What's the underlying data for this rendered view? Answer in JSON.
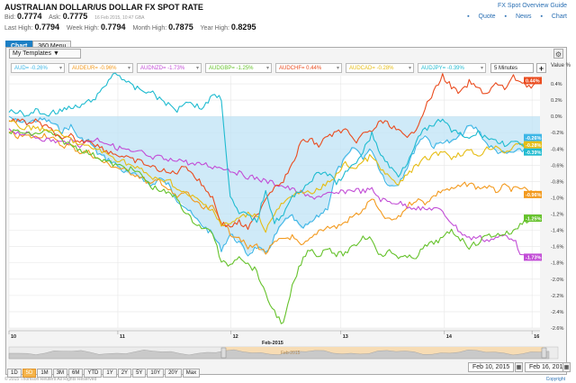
{
  "header": {
    "title": "AUSTRALIAN DOLLAR/US DOLLAR FX SPOT RATE",
    "bid_label": "Bid:",
    "bid": "0.7774",
    "ask_label": "Ask:",
    "ask": "0.7775",
    "timestamp": "16 Feb 2015, 10:47 GBA",
    "last_high_label": "Last High:",
    "last_high": "0.7794",
    "week_high_label": "Week High:",
    "week_high": "0.7794",
    "month_high_label": "Month High:",
    "month_high": "0.7875",
    "year_high_label": "Year High:",
    "year_high": "0.8295"
  },
  "links": {
    "guide": "FX Spot Overview Guide",
    "quote": "Quote",
    "news": "News",
    "chart": "Chart"
  },
  "tabs": [
    {
      "label": "Chart",
      "active": true
    },
    {
      "label": "360 Menu",
      "active": false
    }
  ],
  "toolbar": {
    "templates": "My Templates ▼",
    "gear": "⚙",
    "interval": "5 Minutes",
    "plus": "+",
    "axis_title": "Value %"
  },
  "range_buttons": [
    "1D",
    "5D",
    "1M",
    "3M",
    "6M",
    "YTD",
    "1Y",
    "2Y",
    "5Y",
    "10Y",
    "20Y",
    "Max"
  ],
  "active_range": "5D",
  "dates": {
    "from": "Feb 10, 2015",
    "to": "Feb 16, 2015"
  },
  "footer": {
    "copy": "© 2015 Thomson Reuters All Rights Reserved",
    "copyright": "Copyright"
  },
  "chart_data": {
    "type": "line",
    "x_ticks": [
      "10",
      "11",
      "12",
      "13",
      "14",
      "16"
    ],
    "x_month_label": "Feb-2015",
    "navigator_label": "Feb-2015",
    "y_ticks": [
      "0.4%",
      "0.2%",
      "0.0%",
      "-0.2%",
      "-0.4%",
      "-0.6%",
      "-0.8%",
      "-1.0%",
      "-1.2%",
      "-1.4%",
      "-1.6%",
      "-1.8%",
      "-2.0%",
      "-2.2%",
      "-2.4%",
      "-2.6%"
    ],
    "ylim": [
      -2.6,
      0.5
    ],
    "area_series": "AUD",
    "series": [
      {
        "name": "AUD",
        "button": "AUD= -0.26%",
        "color": "#3db6e6",
        "end_label": "-0.26%",
        "values": [
          0.0,
          -0.07,
          -0.08,
          -0.05,
          -0.04,
          -0.09,
          -0.18,
          -0.12,
          -0.28,
          -0.3,
          -0.45,
          -0.52,
          -0.58,
          -0.68,
          -0.72,
          -0.74,
          -0.86,
          -0.76,
          -0.84,
          -1.02,
          -1.12,
          -1.25,
          -1.35,
          -1.45,
          -1.63,
          -1.45,
          -1.55,
          -1.7,
          -1.6,
          -1.7,
          -1.48,
          -1.3,
          -1.22,
          -1.38,
          -1.32,
          -1.22,
          -1.12,
          -0.68,
          -0.52,
          -0.38,
          -0.5,
          -0.4,
          -0.68,
          -0.86,
          -0.82,
          -0.62,
          -0.36,
          -0.22,
          -0.38,
          -0.3,
          -0.32,
          -0.24,
          -0.12,
          -0.16,
          -0.34,
          -0.42,
          -0.46,
          -0.44,
          -0.42,
          -0.34,
          -0.26
        ]
      },
      {
        "name": "AUDEUR",
        "button": "AUDEUR= -0.96%",
        "color": "#f39a1e",
        "end_label": "-0.96%",
        "values": [
          -0.2,
          -0.25,
          -0.24,
          -0.26,
          -0.22,
          -0.28,
          -0.36,
          -0.36,
          -0.44,
          -0.44,
          -0.52,
          -0.58,
          -0.62,
          -0.66,
          -0.7,
          -0.75,
          -0.84,
          -0.78,
          -0.9,
          -1.0,
          -0.92,
          -1.05,
          -1.14,
          -1.12,
          -1.28,
          -1.44,
          -1.48,
          -1.62,
          -1.58,
          -1.68,
          -1.56,
          -1.5,
          -1.48,
          -1.6,
          -1.52,
          -1.4,
          -1.36,
          -1.36,
          -1.3,
          -1.22,
          -1.16,
          -1.0,
          -1.2,
          -1.28,
          -1.25,
          -1.1,
          -1.02,
          -1.06,
          -0.98,
          -0.9,
          -0.9,
          -0.86,
          -0.82,
          -0.88,
          -0.86,
          -0.92,
          -0.86,
          -0.9,
          -0.88,
          -0.94,
          -0.96
        ]
      },
      {
        "name": "AUDNZD",
        "button": "AUDNZD= -1.73%",
        "color": "#c24dd6",
        "end_label": "-1.73%",
        "values": [
          -0.15,
          -0.2,
          -0.22,
          -0.25,
          -0.28,
          -0.3,
          -0.32,
          -0.3,
          -0.35,
          -0.3,
          -0.28,
          -0.32,
          -0.38,
          -0.4,
          -0.45,
          -0.44,
          -0.52,
          -0.5,
          -0.55,
          -0.52,
          -0.56,
          -0.6,
          -0.58,
          -0.62,
          -0.62,
          -0.66,
          -0.7,
          -0.74,
          -0.76,
          -0.8,
          -0.82,
          -0.86,
          -0.9,
          -0.94,
          -1.0,
          -0.98,
          -0.96,
          -0.95,
          -0.92,
          -0.9,
          -0.92,
          -0.9,
          -1.02,
          -1.05,
          -1.06,
          -1.1,
          -1.12,
          -1.15,
          -1.12,
          -1.18,
          -1.3,
          -1.42,
          -1.5,
          -1.48,
          -1.52,
          -1.5,
          -1.46,
          -1.5,
          -1.72,
          -1.74,
          -1.73
        ]
      },
      {
        "name": "AUDGBP",
        "button": "AUDGBP= -1.25%",
        "color": "#65c22b",
        "end_label": "-1.25%",
        "values": [
          -0.2,
          -0.18,
          -0.22,
          -0.22,
          -0.18,
          -0.22,
          -0.3,
          -0.35,
          -0.4,
          -0.45,
          -0.5,
          -0.55,
          -0.6,
          -0.62,
          -0.66,
          -0.72,
          -0.86,
          -0.9,
          -0.95,
          -1.0,
          -1.2,
          -1.3,
          -1.38,
          -1.42,
          -1.8,
          -1.82,
          -1.7,
          -1.82,
          -1.9,
          -2.2,
          -2.4,
          -2.56,
          -2.1,
          -1.8,
          -1.62,
          -1.72,
          -1.6,
          -1.7,
          -1.68,
          -1.6,
          -1.48,
          -1.5,
          -1.72,
          -1.66,
          -1.72,
          -1.74,
          -1.72,
          -1.6,
          -1.55,
          -1.5,
          -1.4,
          -1.5,
          -1.6,
          -1.55,
          -1.46,
          -1.46,
          -1.44,
          -1.42,
          -1.3,
          -1.26,
          -1.25
        ]
      },
      {
        "name": "AUDCHF",
        "button": "AUDCHF= 0.44%",
        "color": "#ea4c1f",
        "end_label": "0.44%",
        "values": [
          -0.06,
          -0.05,
          -0.08,
          -0.06,
          -0.12,
          -0.18,
          -0.3,
          -0.24,
          -0.32,
          -0.28,
          -0.36,
          -0.42,
          -0.46,
          -0.5,
          -0.54,
          -0.56,
          -0.62,
          -0.65,
          -0.7,
          -0.68,
          -0.6,
          -0.74,
          -0.86,
          -1.0,
          -1.32,
          -1.35,
          -1.3,
          -1.38,
          -1.22,
          -1.0,
          -0.86,
          -0.78,
          -0.6,
          -0.32,
          -0.28,
          -0.36,
          -0.24,
          -0.2,
          -0.16,
          -0.32,
          -0.22,
          -0.18,
          -0.06,
          -0.1,
          -0.18,
          -0.28,
          -0.14,
          0.1,
          0.3,
          0.5,
          0.36,
          0.28,
          0.42,
          0.34,
          0.28,
          0.4,
          0.34,
          0.48,
          0.42,
          0.36,
          0.44
        ]
      },
      {
        "name": "AUDCAD",
        "button": "AUDCAD= -0.28%",
        "color": "#e6bd14",
        "end_label": "-0.28%",
        "values": [
          -0.05,
          -0.12,
          -0.15,
          -0.12,
          -0.18,
          -0.16,
          -0.24,
          -0.28,
          -0.35,
          -0.38,
          -0.4,
          -0.46,
          -0.52,
          -0.55,
          -0.62,
          -0.66,
          -0.74,
          -0.8,
          -0.76,
          -0.9,
          -0.96,
          -1.0,
          -1.08,
          -1.14,
          -1.34,
          -1.32,
          -1.25,
          -1.2,
          -1.2,
          -1.4,
          -1.2,
          -1.06,
          -1.0,
          -0.9,
          -0.96,
          -0.9,
          -0.82,
          -0.72,
          -0.58,
          -0.64,
          -0.56,
          -0.48,
          -0.66,
          -0.74,
          -0.86,
          -0.7,
          -0.62,
          -0.52,
          -0.48,
          -0.42,
          -0.5,
          -0.46,
          -0.42,
          -0.48,
          -0.4,
          -0.36,
          -0.44,
          -0.38,
          -0.34,
          -0.3,
          -0.28
        ]
      },
      {
        "name": "AUDJPY",
        "button": "AUDJPY= -0.39%",
        "color": "#1fbbd0",
        "end_label": "-0.39%",
        "values": [
          0.05,
          0.06,
          0.0,
          0.08,
          0.02,
          0.05,
          0.08,
          0.1,
          0.12,
          0.18,
          0.25,
          0.4,
          0.55,
          0.45,
          0.36,
          0.32,
          0.3,
          0.22,
          0.14,
          0.08,
          0.2,
          0.14,
          0.1,
          0.28,
          0.22,
          -1.0,
          -1.2,
          -1.2,
          -1.3,
          -0.9,
          -1.3,
          -1.2,
          -1.0,
          -0.9,
          -0.8,
          -0.7,
          -0.7,
          -0.82,
          -0.7,
          -0.6,
          -0.42,
          -0.22,
          -0.46,
          -0.62,
          -0.72,
          -0.56,
          -0.3,
          -0.16,
          -0.12,
          -0.02,
          -0.18,
          -0.22,
          -0.28,
          -0.2,
          -0.26,
          -0.3,
          -0.34,
          -0.32,
          -0.36,
          -0.38,
          -0.39
        ]
      }
    ]
  }
}
